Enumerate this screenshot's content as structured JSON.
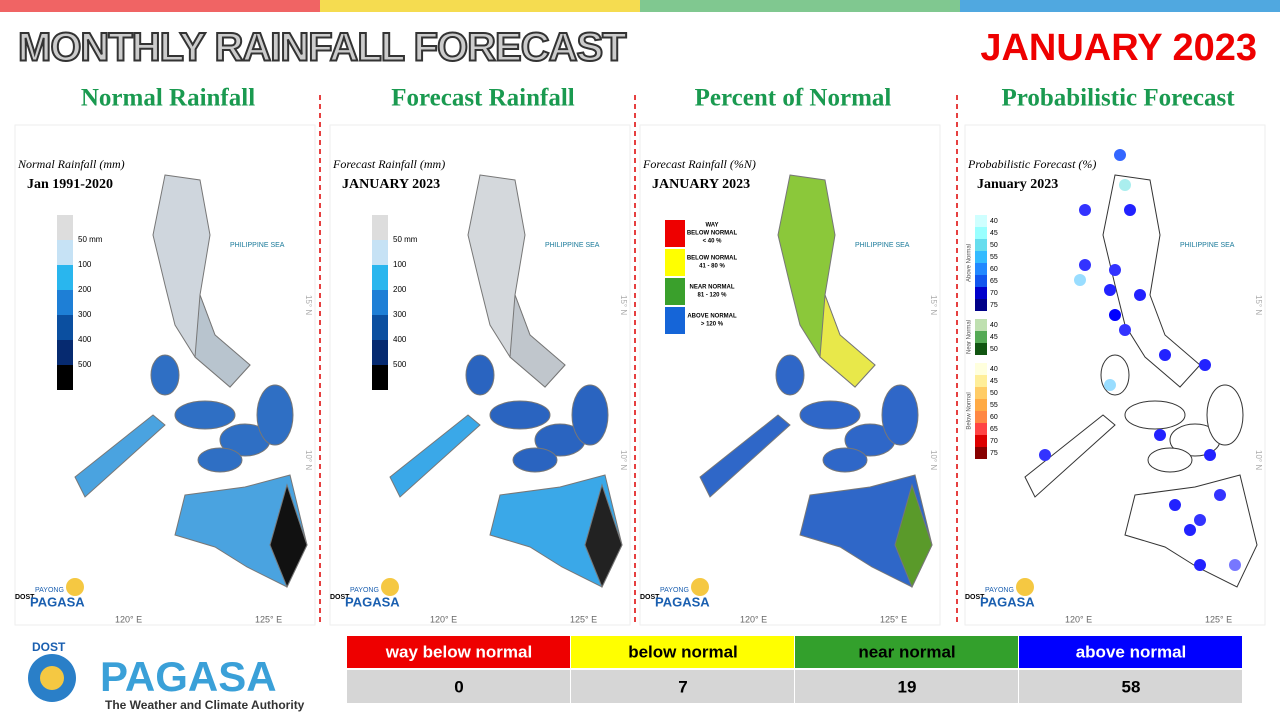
{
  "header": {
    "title": "MONTHLY RAINFALL FORECAST",
    "period": "JANUARY 2023"
  },
  "panels": [
    {
      "title": "Normal Rainfall",
      "map_title": "Normal Rainfall (mm)",
      "map_subtitle": "Jan 1991-2020",
      "legend": [
        "50 mm",
        "100",
        "200",
        "300",
        "400",
        "500"
      ]
    },
    {
      "title": "Forecast Rainfall",
      "map_title": "Forecast Rainfall (mm)",
      "map_subtitle": "JANUARY 2023",
      "legend": [
        "50 mm",
        "100",
        "200",
        "300",
        "400",
        "500"
      ]
    },
    {
      "title": "Percent of Normal",
      "map_title": "Forecast Rainfall (%N)",
      "map_subtitle": "JANUARY 2023",
      "legend": [
        [
          "WAY",
          "BELOW NORMAL",
          "< 40 %"
        ],
        [
          "BELOW NORMAL",
          "41 - 80 %"
        ],
        [
          "NEAR NORMAL",
          "81 - 120 %"
        ],
        [
          "ABOVE NORMAL",
          "> 120 %"
        ]
      ]
    },
    {
      "title": "Probabilistic Forecast",
      "map_title": "Probabilistic Forecast (%)",
      "map_subtitle": "January 2023",
      "legend": [
        {
          "name": "Above Normal",
          "ticks": [
            40,
            45,
            50,
            55,
            60,
            65,
            70,
            75
          ]
        },
        {
          "name": "Near Normal",
          "ticks": [
            40,
            45,
            50
          ]
        },
        {
          "name": "Below Normal",
          "ticks": [
            40,
            45,
            50,
            55,
            60,
            65,
            70,
            75
          ]
        }
      ]
    }
  ],
  "map_labels": {
    "sea": "PHILIPPINE SEA",
    "lon": [
      "120° E",
      "125° E"
    ],
    "lat": [
      "15° N",
      "10° N"
    ]
  },
  "badge": {
    "org": "DOST",
    "program": "PAYONG",
    "name": "PAGASA"
  },
  "logo": {
    "org": "DOST",
    "name": "PAGASA",
    "tagline": "The Weather and Climate Authority"
  },
  "table": {
    "header": [
      "way below normal",
      "below normal",
      "near normal",
      "above normal"
    ],
    "rows": [
      [
        0,
        7,
        19,
        58
      ]
    ]
  }
}
